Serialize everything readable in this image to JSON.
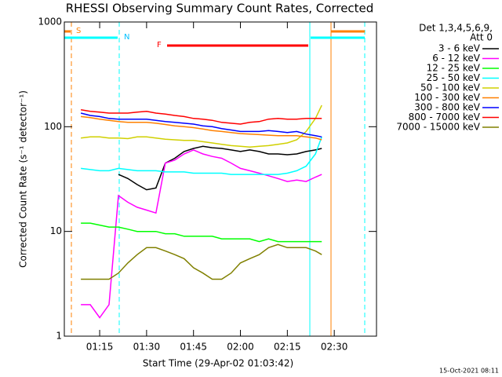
{
  "chart_data": {
    "type": "line",
    "title": "RHESSI Observing Summary Count Rates, Corrected",
    "xlabel": "Start Time (29-Apr-02 01:03:42)",
    "ylabel": "Corrected Count Rate (s⁻¹ detector⁻¹)",
    "legend_header": [
      "Det 1,3,4,5,6,9,",
      "Att 0"
    ],
    "annotations": [
      "S",
      "N",
      "F"
    ],
    "footer": "15-Oct-2021 08:11",
    "log_scale": true,
    "xlim": [
      3.7,
      103.5
    ],
    "xticks": [
      {
        "value": 15,
        "label": "01:15"
      },
      {
        "value": 30,
        "label": "01:30"
      },
      {
        "value": 45,
        "label": "01:45"
      },
      {
        "value": 60,
        "label": "02:00"
      },
      {
        "value": 75,
        "label": "02:15"
      },
      {
        "value": 90,
        "label": "02:30"
      }
    ],
    "ylim": [
      1,
      1000
    ],
    "yticks": [
      1,
      10,
      100,
      1000
    ],
    "x": [
      9,
      12,
      15,
      18,
      21,
      24,
      27,
      30,
      33,
      36,
      39,
      42,
      45,
      48,
      51,
      54,
      57,
      60,
      63,
      66,
      69,
      72,
      75,
      78,
      81,
      84,
      86
    ],
    "series": [
      {
        "name": "3 - 6 keV",
        "color": "#000000",
        "values": [
          null,
          null,
          null,
          null,
          35,
          32,
          28,
          25,
          26,
          45,
          50,
          58,
          62,
          65,
          63,
          62,
          60,
          58,
          60,
          58,
          55,
          55,
          54,
          55,
          58,
          60,
          62
        ]
      },
      {
        "name": "6 - 12 keV",
        "color": "#ff00ff",
        "values": [
          2,
          2,
          1.5,
          2,
          22,
          19,
          17,
          16,
          15,
          45,
          48,
          55,
          60,
          55,
          52,
          50,
          45,
          40,
          38,
          36,
          34,
          32,
          30,
          31,
          30,
          33,
          35
        ]
      },
      {
        "name": "12 - 25 keV",
        "color": "#00ff00",
        "values": [
          12,
          12,
          11.5,
          11,
          11,
          10.5,
          10,
          10,
          10,
          9.5,
          9.5,
          9,
          9,
          9,
          9,
          8.5,
          8.5,
          8.5,
          8.5,
          8,
          8.5,
          8,
          8,
          8,
          8,
          8,
          8
        ]
      },
      {
        "name": "25 - 50 keV",
        "color": "#00ffff",
        "values": [
          40,
          39,
          38,
          38,
          40,
          39,
          38,
          38,
          38,
          37,
          37,
          37,
          36,
          36,
          36,
          36,
          35,
          35,
          35,
          35,
          35,
          35,
          36,
          38,
          42,
          55,
          80
        ]
      },
      {
        "name": "50 - 100 keV",
        "color": "#d0d000",
        "values": [
          78,
          80,
          80,
          78,
          78,
          77,
          80,
          80,
          78,
          76,
          75,
          74,
          74,
          72,
          70,
          68,
          66,
          65,
          64,
          65,
          66,
          68,
          70,
          75,
          90,
          120,
          160
        ]
      },
      {
        "name": "100 - 300 keV",
        "color": "#ff8000",
        "values": [
          125,
          122,
          118,
          115,
          112,
          110,
          110,
          110,
          108,
          105,
          102,
          100,
          98,
          95,
          92,
          90,
          88,
          86,
          85,
          84,
          83,
          82,
          82,
          82,
          80,
          78,
          75
        ]
      },
      {
        "name": "300 - 800 keV",
        "color": "#0000ff",
        "values": [
          135,
          128,
          125,
          120,
          118,
          118,
          118,
          118,
          115,
          112,
          110,
          108,
          106,
          102,
          100,
          96,
          93,
          90,
          90,
          90,
          92,
          90,
          88,
          90,
          85,
          82,
          80
        ]
      },
      {
        "name": "800 - 7000 keV",
        "color": "#ff0000",
        "values": [
          145,
          140,
          138,
          135,
          135,
          135,
          138,
          140,
          135,
          132,
          128,
          125,
          120,
          118,
          115,
          110,
          108,
          106,
          110,
          112,
          118,
          120,
          118,
          118,
          120,
          120,
          120
        ]
      },
      {
        "name": "7000 - 15000 keV",
        "color": "#808000",
        "values": [
          3.5,
          3.5,
          3.5,
          3.5,
          4,
          5,
          6,
          7,
          7,
          6.5,
          6,
          5.5,
          4.5,
          4,
          3.5,
          3.5,
          4,
          5,
          5.5,
          6,
          7,
          7.5,
          7,
          7,
          7,
          6.5,
          6
        ]
      }
    ]
  }
}
